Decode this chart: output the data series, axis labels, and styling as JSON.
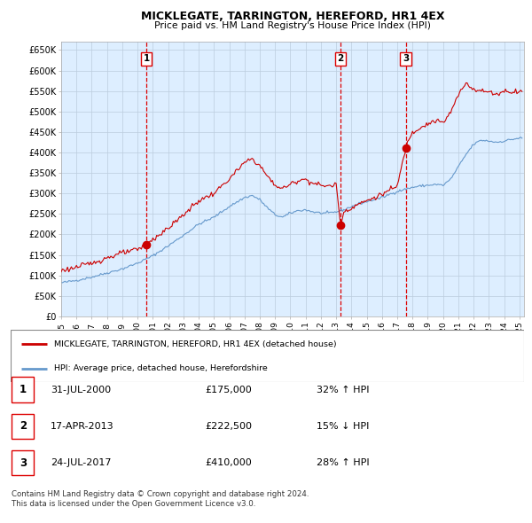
{
  "title": "MICKLEGATE, TARRINGTON, HEREFORD, HR1 4EX",
  "subtitle": "Price paid vs. HM Land Registry's House Price Index (HPI)",
  "ylabel_ticks": [
    "£0",
    "£50K",
    "£100K",
    "£150K",
    "£200K",
    "£250K",
    "£300K",
    "£350K",
    "£400K",
    "£450K",
    "£500K",
    "£550K",
    "£600K",
    "£650K"
  ],
  "ylim": [
    0,
    670000
  ],
  "xlim_start": 1995.0,
  "xlim_end": 2025.3,
  "sale_dates": [
    2000.58,
    2013.29,
    2017.56
  ],
  "sale_prices": [
    175000,
    222500,
    410000
  ],
  "sale_labels": [
    "1",
    "2",
    "3"
  ],
  "vline_color": "#dd0000",
  "sale_dot_color": "#cc0000",
  "hpi_line_color": "#6699cc",
  "price_line_color": "#cc0000",
  "chart_bg_color": "#ddeeff",
  "background_color": "#ffffff",
  "grid_color": "#bbccdd",
  "legend_label_red": "MICKLEGATE, TARRINGTON, HEREFORD, HR1 4EX (detached house)",
  "legend_label_blue": "HPI: Average price, detached house, Herefordshire",
  "table_rows": [
    [
      "1",
      "31-JUL-2000",
      "£175,000",
      "32% ↑ HPI"
    ],
    [
      "2",
      "17-APR-2013",
      "£222,500",
      "15% ↓ HPI"
    ],
    [
      "3",
      "24-JUL-2017",
      "£410,000",
      "28% ↑ HPI"
    ]
  ],
  "footer": "Contains HM Land Registry data © Crown copyright and database right 2024.\nThis data is licensed under the Open Government Licence v3.0.",
  "hpi_seed": 42,
  "price_seed": 123
}
